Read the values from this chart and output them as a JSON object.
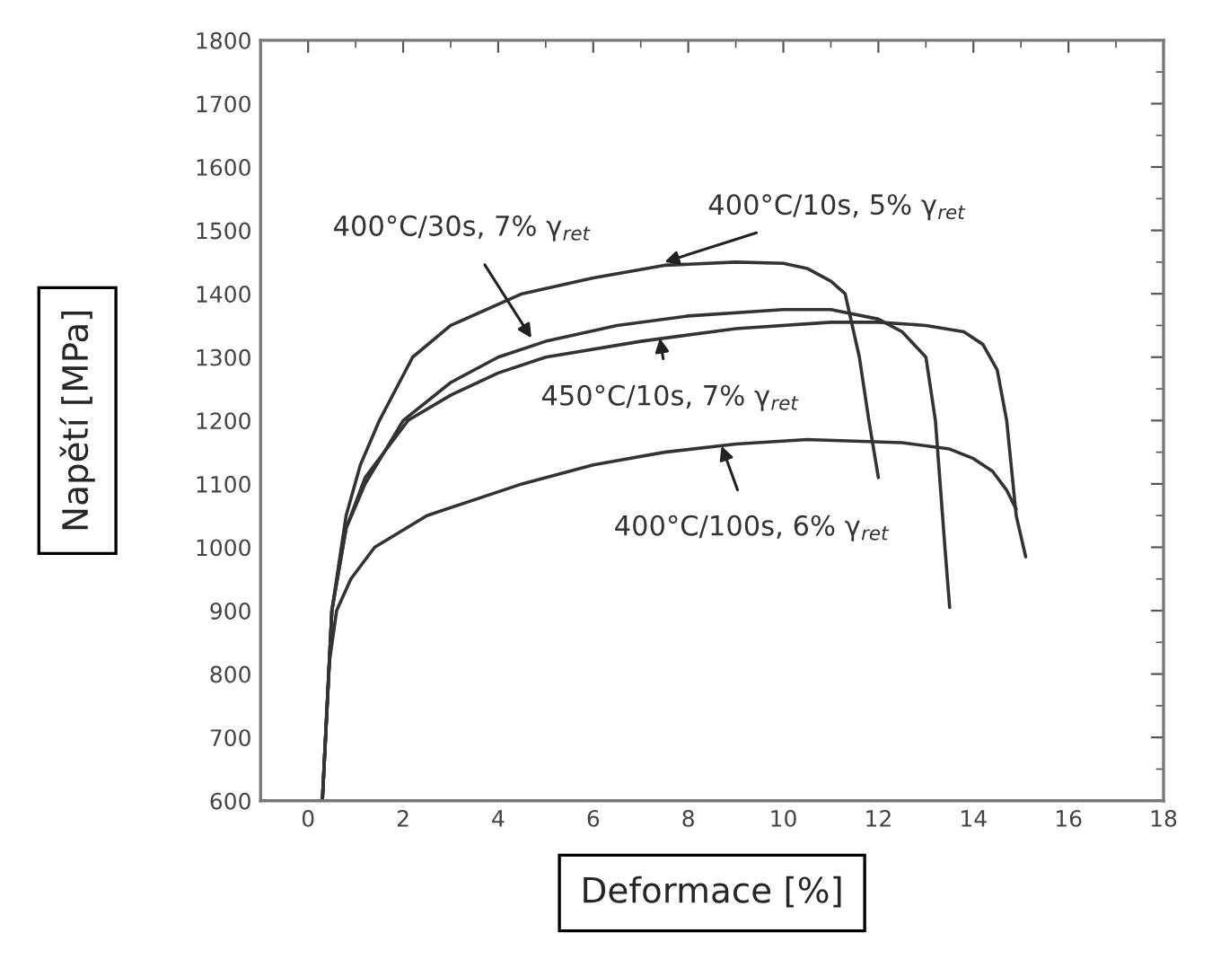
{
  "chart_data": {
    "type": "line",
    "xlabel": "Deformace [%]",
    "ylabel": "Napětí [MPa]",
    "xlim": [
      -1,
      18
    ],
    "xticks": [
      0,
      2,
      4,
      6,
      8,
      10,
      12,
      14,
      16,
      18
    ],
    "ylim": [
      600,
      1800
    ],
    "yticks": [
      600,
      700,
      800,
      900,
      1000,
      1100,
      1200,
      1300,
      1400,
      1500,
      1600,
      1700,
      1800
    ],
    "grid": false,
    "legend": false,
    "marker": "none",
    "line_style": "solid",
    "series": [
      {
        "color": "#333333",
        "x": [
          0.3,
          0.5,
          0.8,
          1.1,
          1.5,
          2.2,
          3.0,
          4.5,
          6.0,
          7.5,
          9.0,
          10.0,
          10.5,
          11.0,
          11.3,
          11.6,
          11.8,
          12.0
        ],
        "values": [
          600,
          900,
          1050,
          1130,
          1200,
          1300,
          1350,
          1400,
          1425,
          1445,
          1450,
          1448,
          1440,
          1420,
          1400,
          1300,
          1200,
          1110
        ]
      },
      {
        "color": "#333333",
        "x": [
          0.3,
          0.5,
          0.8,
          1.2,
          2.0,
          3.0,
          4.0,
          5.0,
          6.5,
          8.0,
          10.0,
          11.0,
          12.0,
          12.5,
          13.0,
          13.2,
          13.4,
          13.5
        ],
        "values": [
          600,
          900,
          1030,
          1100,
          1200,
          1260,
          1300,
          1325,
          1350,
          1365,
          1375,
          1375,
          1360,
          1340,
          1300,
          1200,
          1000,
          905
        ]
      },
      {
        "color": "#333333",
        "x": [
          0.3,
          0.5,
          0.8,
          1.2,
          2.1,
          3.0,
          4.0,
          5.0,
          7.0,
          9.0,
          11.0,
          12.0,
          13.0,
          13.8,
          14.2,
          14.5,
          14.7,
          14.9,
          15.1
        ],
        "values": [
          600,
          900,
          1030,
          1110,
          1200,
          1240,
          1275,
          1300,
          1325,
          1345,
          1355,
          1355,
          1350,
          1340,
          1320,
          1280,
          1200,
          1050,
          985
        ]
      },
      {
        "color": "#333333",
        "x": [
          0.3,
          0.45,
          0.6,
          0.9,
          1.4,
          2.5,
          4.5,
          6.0,
          7.5,
          9.0,
          10.5,
          12.5,
          13.5,
          14.0,
          14.4,
          14.7,
          14.9
        ],
        "values": [
          600,
          820,
          900,
          950,
          1000,
          1050,
          1100,
          1130,
          1150,
          1163,
          1170,
          1165,
          1155,
          1140,
          1120,
          1090,
          1060
        ]
      }
    ],
    "annotations": [
      {
        "text": "400°C/10s, 5% γ$_{ret}$",
        "x": 7.5,
        "y": 1450
      },
      {
        "text": "400°C/30s, 7% γ$_{ret}$",
        "x": 4.7,
        "y": 1330
      },
      {
        "text": "450°C/10s, 7% γ$_{ret}$",
        "x": 7.4,
        "y": 1330
      },
      {
        "text": "400°C/100s, 6% γ$_{ret}$",
        "x": 8.7,
        "y": 1160
      }
    ]
  }
}
